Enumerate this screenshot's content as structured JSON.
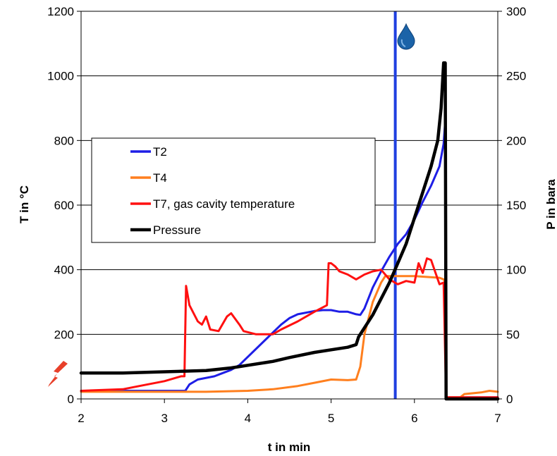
{
  "chart_data": {
    "type": "line",
    "xlabel": "t in min",
    "ylabel_left": "T in °C",
    "ylabel_right": "P in bara",
    "xlim": [
      2,
      7
    ],
    "ylim_left": [
      0,
      1200
    ],
    "ylim_right": [
      0,
      300
    ],
    "x_ticks": [
      "2",
      "3",
      "4",
      "5",
      "6",
      "7"
    ],
    "y_left_ticks": [
      "0",
      "200",
      "400",
      "600",
      "800",
      "1000",
      "1200"
    ],
    "y_right_ticks": [
      "0",
      "50",
      "100",
      "150",
      "200",
      "250",
      "300"
    ],
    "grid": "horizontal",
    "legend_position": "upper-left",
    "event_line": {
      "x": 5.77,
      "color": "#1f3fe0"
    },
    "icons": [
      "water-drop-icon",
      "lightning-icon"
    ],
    "series": [
      {
        "name": "T2",
        "axis": "left",
        "color": "#1e1ee6",
        "x": [
          2.0,
          2.5,
          3.0,
          3.15,
          3.25,
          3.3,
          3.4,
          3.6,
          3.7,
          3.8,
          3.9,
          4.0,
          4.2,
          4.4,
          4.5,
          4.6,
          4.8,
          4.9,
          5.0,
          5.1,
          5.2,
          5.3,
          5.35,
          5.4,
          5.5,
          5.6,
          5.7,
          5.8,
          5.9,
          6.0,
          6.1,
          6.2,
          6.3,
          6.35,
          6.37,
          6.38,
          6.5,
          7.0
        ],
        "y": [
          25,
          25,
          25,
          25,
          25,
          45,
          60,
          70,
          80,
          90,
          105,
          130,
          180,
          230,
          250,
          262,
          272,
          275,
          275,
          270,
          270,
          262,
          260,
          280,
          345,
          395,
          440,
          480,
          510,
          555,
          610,
          660,
          720,
          790,
          860,
          5,
          5,
          5
        ]
      },
      {
        "name": "T4",
        "axis": "left",
        "color": "#ff7f1e",
        "x": [
          2.0,
          2.5,
          3.0,
          3.5,
          4.0,
          4.3,
          4.6,
          4.8,
          5.0,
          5.2,
          5.3,
          5.35,
          5.4,
          5.5,
          5.6,
          5.65,
          6.0,
          6.3,
          6.35,
          6.37,
          6.38,
          6.45,
          6.55,
          6.6,
          6.8,
          6.9,
          7.0
        ],
        "y": [
          22,
          22,
          22,
          22,
          25,
          30,
          40,
          50,
          60,
          58,
          60,
          100,
          200,
          300,
          360,
          380,
          380,
          375,
          370,
          360,
          5,
          5,
          5,
          15,
          20,
          25,
          22
        ]
      },
      {
        "name": "T7, gas cavity temperature",
        "axis": "left",
        "color": "#ff1010",
        "x": [
          2.0,
          2.5,
          2.7,
          3.0,
          3.2,
          3.24,
          3.26,
          3.3,
          3.4,
          3.45,
          3.5,
          3.55,
          3.65,
          3.75,
          3.8,
          3.9,
          3.95,
          4.1,
          4.3,
          4.4,
          4.6,
          4.8,
          4.95,
          4.97,
          5.0,
          5.05,
          5.1,
          5.2,
          5.3,
          5.4,
          5.5,
          5.6,
          5.7,
          5.8,
          5.9,
          6.0,
          6.05,
          6.1,
          6.15,
          6.2,
          6.3,
          6.35,
          6.38,
          6.5,
          7.0
        ],
        "y": [
          25,
          30,
          40,
          55,
          70,
          70,
          350,
          290,
          240,
          230,
          255,
          215,
          210,
          255,
          265,
          230,
          210,
          200,
          200,
          215,
          240,
          270,
          290,
          420,
          420,
          410,
          395,
          385,
          370,
          385,
          395,
          400,
          370,
          355,
          365,
          360,
          420,
          390,
          435,
          430,
          355,
          360,
          5,
          5,
          5
        ]
      },
      {
        "name": "Pressure",
        "axis": "right",
        "color": "#000000",
        "x": [
          2.0,
          2.5,
          3.0,
          3.5,
          3.8,
          4.0,
          4.3,
          4.5,
          4.8,
          5.0,
          5.2,
          5.3,
          5.33,
          5.5,
          5.7,
          5.8,
          5.9,
          6.0,
          6.1,
          6.2,
          6.28,
          6.32,
          6.35,
          6.37,
          6.38,
          6.5,
          7.0
        ],
        "y": [
          20,
          20,
          21,
          22,
          24,
          26,
          29,
          32,
          36,
          38,
          40,
          42,
          48,
          65,
          90,
          105,
          120,
          140,
          160,
          180,
          200,
          225,
          260,
          260,
          0,
          0,
          0
        ]
      }
    ]
  }
}
